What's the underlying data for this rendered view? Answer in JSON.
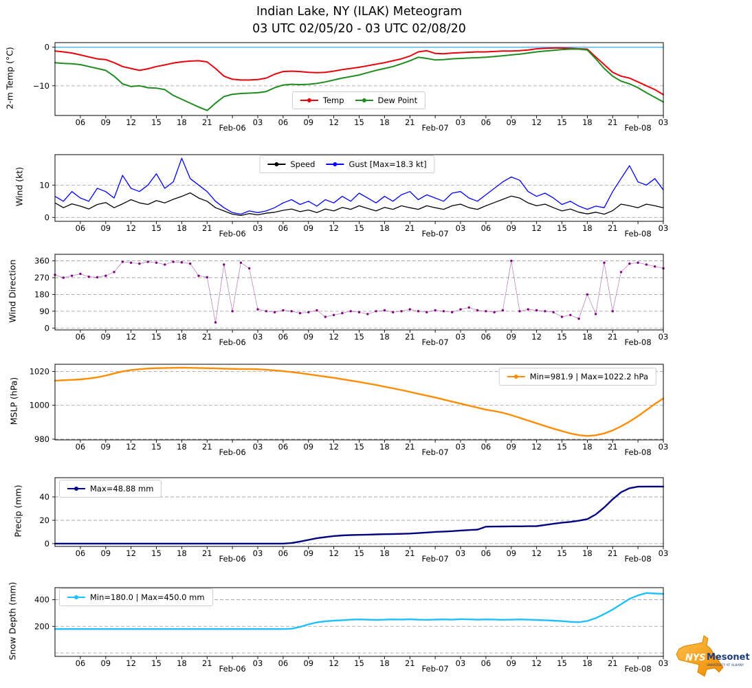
{
  "title": {
    "line1": "Indian Lake, NY (ILAK) Meteogram",
    "line2": "03 UTC 02/05/20 - 03 UTC 02/08/20"
  },
  "logo": {
    "nys": "NYS",
    "mesonet": "Mesonet",
    "tagline": "UNIVERSITY AT ALBANY"
  },
  "x_axis": {
    "start_hour": 3,
    "end_hour": 75,
    "sample_interval_hours": 1,
    "ticks": [
      {
        "t": 6,
        "label": "06"
      },
      {
        "t": 9,
        "label": "09"
      },
      {
        "t": 12,
        "label": "12"
      },
      {
        "t": 15,
        "label": "15"
      },
      {
        "t": 18,
        "label": "18"
      },
      {
        "t": 21,
        "label": "21"
      },
      {
        "t": 24,
        "label": "Feb-06",
        "major": true
      },
      {
        "t": 27,
        "label": "03"
      },
      {
        "t": 30,
        "label": "06"
      },
      {
        "t": 33,
        "label": "09"
      },
      {
        "t": 36,
        "label": "12"
      },
      {
        "t": 39,
        "label": "15"
      },
      {
        "t": 42,
        "label": "18"
      },
      {
        "t": 45,
        "label": "21"
      },
      {
        "t": 48,
        "label": "Feb-07",
        "major": true
      },
      {
        "t": 51,
        "label": "03"
      },
      {
        "t": 54,
        "label": "06"
      },
      {
        "t": 57,
        "label": "09"
      },
      {
        "t": 60,
        "label": "12"
      },
      {
        "t": 63,
        "label": "15"
      },
      {
        "t": 66,
        "label": "18"
      },
      {
        "t": 69,
        "label": "21"
      },
      {
        "t": 72,
        "label": "Feb-08",
        "major": true
      },
      {
        "t": 75,
        "label": "03"
      }
    ]
  },
  "chart_data": [
    {
      "type": "line",
      "id": "temperature",
      "ylabel": "2-m Temp (°C)",
      "ylim": [
        -17.7,
        1.2
      ],
      "yticks": [
        {
          "v": 0,
          "label": "0"
        },
        {
          "v": -10,
          "label": "−10"
        }
      ],
      "gridlines": [
        -10
      ],
      "hlines": [
        {
          "v": 0,
          "color": "#5CB8E6",
          "width": 1.6
        }
      ],
      "series": [
        {
          "label": "Temp",
          "color": "#E8000B",
          "width": 2,
          "values": [
            -1.0,
            -1.2,
            -1.5,
            -2.0,
            -2.5,
            -3.0,
            -3.2,
            -4.0,
            -5.0,
            -5.5,
            -6.0,
            -5.6,
            -5.0,
            -4.6,
            -4.1,
            -3.8,
            -3.6,
            -3.5,
            -3.8,
            -5.5,
            -7.5,
            -8.3,
            -8.5,
            -8.5,
            -8.4,
            -8.0,
            -7.0,
            -6.3,
            -6.2,
            -6.3,
            -6.5,
            -6.6,
            -6.5,
            -6.2,
            -5.8,
            -5.5,
            -5.2,
            -4.8,
            -4.4,
            -4.0,
            -3.5,
            -3.0,
            -2.3,
            -1.2,
            -0.9,
            -1.6,
            -1.7,
            -1.5,
            -1.4,
            -1.3,
            -1.2,
            -1.2,
            -1.1,
            -1.0,
            -1.0,
            -0.9,
            -0.7,
            -0.4,
            -0.3,
            -0.2,
            -0.2,
            -0.3,
            -0.4,
            -0.5,
            -2.5,
            -4.5,
            -6.5,
            -7.5,
            -8.0,
            -9.0,
            -10.0,
            -11.0,
            -12.3
          ]
        },
        {
          "label": "Dew Point",
          "color": "#1E8B1E",
          "width": 2,
          "values": [
            -4.0,
            -4.2,
            -4.3,
            -4.5,
            -5.0,
            -5.5,
            -6.0,
            -7.5,
            -9.5,
            -10.2,
            -10.0,
            -10.5,
            -10.6,
            -11.0,
            -12.5,
            -13.5,
            -14.5,
            -15.5,
            -16.4,
            -14.5,
            -12.8,
            -12.2,
            -12.0,
            -11.9,
            -11.8,
            -11.5,
            -10.5,
            -9.8,
            -9.6,
            -9.7,
            -9.6,
            -9.4,
            -9.0,
            -8.5,
            -8.0,
            -7.6,
            -7.2,
            -6.6,
            -6.0,
            -5.5,
            -5.0,
            -4.3,
            -3.5,
            -2.6,
            -2.9,
            -3.3,
            -3.2,
            -3.0,
            -2.9,
            -2.8,
            -2.7,
            -2.6,
            -2.4,
            -2.2,
            -2.0,
            -1.8,
            -1.5,
            -1.2,
            -1.0,
            -0.8,
            -0.6,
            -0.5,
            -0.5,
            -0.7,
            -3.0,
            -5.5,
            -7.5,
            -8.8,
            -9.5,
            -10.5,
            -11.8,
            -13.0,
            -14.2
          ]
        }
      ],
      "legend": {
        "position": "bottom-center",
        "items": [
          {
            "label": "Temp",
            "color": "#E8000B"
          },
          {
            "label": "Dew Point",
            "color": "#1E8B1E"
          }
        ]
      }
    },
    {
      "type": "line",
      "id": "wind",
      "ylabel": "Wind (kt)",
      "ylim": [
        -1.2,
        19.4
      ],
      "yticks": [
        {
          "v": 0,
          "label": "0"
        },
        {
          "v": 10,
          "label": "10"
        }
      ],
      "gridlines": [
        0,
        10
      ],
      "hlines": [],
      "series": [
        {
          "label": "Speed",
          "color": "#000000",
          "width": 1.3,
          "values": [
            4.5,
            3.0,
            4.2,
            3.5,
            2.6,
            4.0,
            4.6,
            3.0,
            4.2,
            5.5,
            4.5,
            4.0,
            5.2,
            4.5,
            5.6,
            6.5,
            7.6,
            6.0,
            5.0,
            3.0,
            2.0,
            1.0,
            0.6,
            1.2,
            0.8,
            1.3,
            1.6,
            2.2,
            2.6,
            1.8,
            2.3,
            1.5,
            2.6,
            2.0,
            3.1,
            2.5,
            3.6,
            2.8,
            2.0,
            3.1,
            2.5,
            3.6,
            3.0,
            2.5,
            3.6,
            3.0,
            2.5,
            3.6,
            4.1,
            3.0,
            2.5,
            3.6,
            4.6,
            5.6,
            6.6,
            6.0,
            4.5,
            3.6,
            4.1,
            3.0,
            2.0,
            2.6,
            1.6,
            1.1,
            1.6,
            1.0,
            2.1,
            4.1,
            3.6,
            3.0,
            4.1,
            3.6,
            3.0
          ]
        },
        {
          "label": "Gust [Max=18.3 kt]",
          "color": "#0000FF",
          "width": 1.3,
          "values": [
            6.5,
            5.0,
            8.0,
            6.0,
            5.0,
            9.0,
            8.0,
            6.0,
            13.0,
            9.0,
            8.0,
            10.0,
            13.5,
            9.0,
            11.0,
            18.3,
            12.0,
            10.0,
            8.0,
            5.0,
            3.0,
            1.5,
            1.0,
            2.0,
            1.5,
            2.0,
            3.0,
            4.5,
            5.5,
            4.0,
            5.0,
            3.5,
            5.5,
            4.5,
            6.5,
            5.0,
            7.5,
            6.0,
            4.5,
            6.5,
            5.0,
            7.0,
            8.0,
            5.5,
            7.0,
            6.0,
            5.0,
            7.5,
            8.0,
            6.0,
            5.0,
            7.0,
            9.0,
            11.0,
            12.5,
            11.5,
            8.0,
            6.5,
            7.5,
            6.0,
            4.0,
            5.0,
            3.5,
            2.5,
            3.5,
            3.0,
            8.0,
            12.0,
            16.0,
            11.0,
            10.0,
            12.0,
            8.5
          ]
        }
      ],
      "legend": {
        "position": "top-center",
        "items": [
          {
            "label": "Speed",
            "color": "#000000"
          },
          {
            "label": "Gust [Max=18.3 kt]",
            "color": "#0000FF"
          }
        ]
      }
    },
    {
      "type": "scatter",
      "id": "wind-direction",
      "ylabel": "Wind Direction",
      "ylim": [
        -10,
        395
      ],
      "yticks": [
        {
          "v": 0,
          "label": "0"
        },
        {
          "v": 90,
          "label": "90"
        },
        {
          "v": 180,
          "label": "180"
        },
        {
          "v": 270,
          "label": "270"
        },
        {
          "v": 360,
          "label": "360"
        }
      ],
      "gridlines": [
        0,
        90,
        180,
        270,
        360
      ],
      "hlines": [],
      "series": [
        {
          "label": "Wind Direction",
          "color": "#800080",
          "width": 0.7,
          "marker": true,
          "values": [
            285,
            270,
            280,
            290,
            275,
            272,
            280,
            300,
            355,
            350,
            345,
            355,
            350,
            340,
            355,
            352,
            345,
            280,
            272,
            30,
            340,
            90,
            350,
            320,
            100,
            90,
            85,
            95,
            90,
            80,
            85,
            95,
            60,
            70,
            80,
            90,
            85,
            75,
            90,
            95,
            85,
            90,
            100,
            90,
            85,
            95,
            90,
            85,
            100,
            110,
            95,
            90,
            85,
            95,
            360,
            90,
            100,
            95,
            90,
            85,
            60,
            70,
            50,
            180,
            75,
            350,
            90,
            300,
            345,
            350,
            340,
            330,
            320
          ]
        }
      ],
      "legend": null
    },
    {
      "type": "line",
      "id": "mslp",
      "ylabel": "MSLP (hPa)",
      "ylim": [
        979.6,
        1024.2
      ],
      "yticks": [
        {
          "v": 980,
          "label": "980"
        },
        {
          "v": 1000,
          "label": "1000"
        },
        {
          "v": 1020,
          "label": "1020"
        }
      ],
      "gridlines": [
        980,
        1000,
        1020
      ],
      "hlines": [],
      "series": [
        {
          "label": "Min=981.9 | Max=1022.2 hPa",
          "color": "#FF8C00",
          "width": 2.4,
          "values": [
            1014.5,
            1014.8,
            1015.0,
            1015.3,
            1015.8,
            1016.5,
            1017.5,
            1018.8,
            1020.0,
            1020.8,
            1021.3,
            1021.7,
            1021.9,
            1022.0,
            1022.1,
            1022.2,
            1022.1,
            1022.0,
            1021.9,
            1021.8,
            1021.6,
            1021.5,
            1021.4,
            1021.4,
            1021.3,
            1021.0,
            1020.6,
            1020.2,
            1019.6,
            1019.0,
            1018.3,
            1017.6,
            1016.9,
            1016.2,
            1015.4,
            1014.6,
            1013.8,
            1012.9,
            1012.0,
            1011.0,
            1010.0,
            1009.0,
            1007.9,
            1006.8,
            1005.7,
            1004.6,
            1003.4,
            1002.2,
            1001.0,
            999.8,
            998.6,
            997.4,
            996.6,
            995.6,
            994.2,
            992.6,
            991.0,
            989.4,
            987.8,
            986.2,
            984.8,
            983.4,
            982.4,
            981.9,
            982.3,
            983.4,
            985.2,
            987.6,
            990.4,
            993.6,
            997.2,
            1000.8,
            1004.0
          ]
        }
      ],
      "legend": {
        "position": "top-right",
        "items": [
          {
            "label": "Min=981.9 | Max=1022.2 hPa",
            "color": "#FF8C00"
          }
        ]
      }
    },
    {
      "type": "line",
      "id": "precip",
      "ylabel": "Precip (mm)",
      "ylim": [
        -2.4,
        56.5
      ],
      "yticks": [
        {
          "v": 0,
          "label": "0"
        },
        {
          "v": 20,
          "label": "20"
        },
        {
          "v": 40,
          "label": "40"
        }
      ],
      "gridlines": [
        0,
        20,
        40
      ],
      "hlines": [],
      "series": [
        {
          "label": "Max=48.88 mm",
          "color": "#000080",
          "width": 2.4,
          "values": [
            0,
            0,
            0,
            0,
            0,
            0,
            0,
            0,
            0,
            0,
            0,
            0,
            0,
            0,
            0,
            0,
            0,
            0,
            0,
            0,
            0,
            0,
            0,
            0,
            0,
            0,
            0,
            0,
            0.5,
            1.8,
            3.2,
            4.6,
            5.6,
            6.5,
            7.0,
            7.3,
            7.5,
            7.7,
            7.9,
            8.1,
            8.2,
            8.4,
            8.6,
            9.0,
            9.5,
            10.0,
            10.3,
            10.7,
            11.2,
            11.6,
            12.0,
            14.5,
            14.6,
            14.7,
            14.8,
            14.8,
            14.9,
            15.0,
            16.0,
            17.0,
            18.0,
            18.6,
            19.6,
            21.0,
            25.0,
            31.0,
            38.0,
            44.0,
            47.5,
            48.8,
            48.88,
            48.88,
            48.88
          ]
        }
      ],
      "legend": {
        "position": "top-left",
        "items": [
          {
            "label": "Max=48.88 mm",
            "color": "#000080"
          }
        ]
      }
    },
    {
      "type": "line",
      "id": "snow-depth",
      "ylabel": "Snow Depth (mm)",
      "ylim": [
        -25,
        490
      ],
      "yticks": [
        {
          "v": 200,
          "label": "200"
        },
        {
          "v": 400,
          "label": "400"
        }
      ],
      "gridlines": [
        0,
        200,
        400
      ],
      "hlines": [],
      "series": [
        {
          "label": "Min=180.0 | Max=450.0 mm",
          "color": "#1FBFFF",
          "width": 2.4,
          "values": [
            180,
            180,
            180,
            180,
            180,
            180,
            180,
            180,
            180,
            180,
            180,
            180,
            180,
            180,
            180,
            180,
            180,
            180,
            180,
            180,
            180,
            180,
            180,
            180,
            180,
            180,
            180,
            180,
            182,
            196,
            215,
            230,
            238,
            243,
            246,
            250,
            252,
            250,
            248,
            250,
            252,
            251,
            253,
            250,
            249,
            251,
            252,
            250,
            254,
            252,
            250,
            252,
            251,
            249,
            250,
            252,
            250,
            248,
            246,
            243,
            239,
            234,
            231,
            240,
            262,
            292,
            326,
            366,
            406,
            432,
            450,
            446,
            443
          ]
        }
      ],
      "legend": {
        "position": "top-left",
        "items": [
          {
            "label": "Min=180.0 | Max=450.0 mm",
            "color": "#1FBFFF"
          }
        ]
      }
    }
  ]
}
